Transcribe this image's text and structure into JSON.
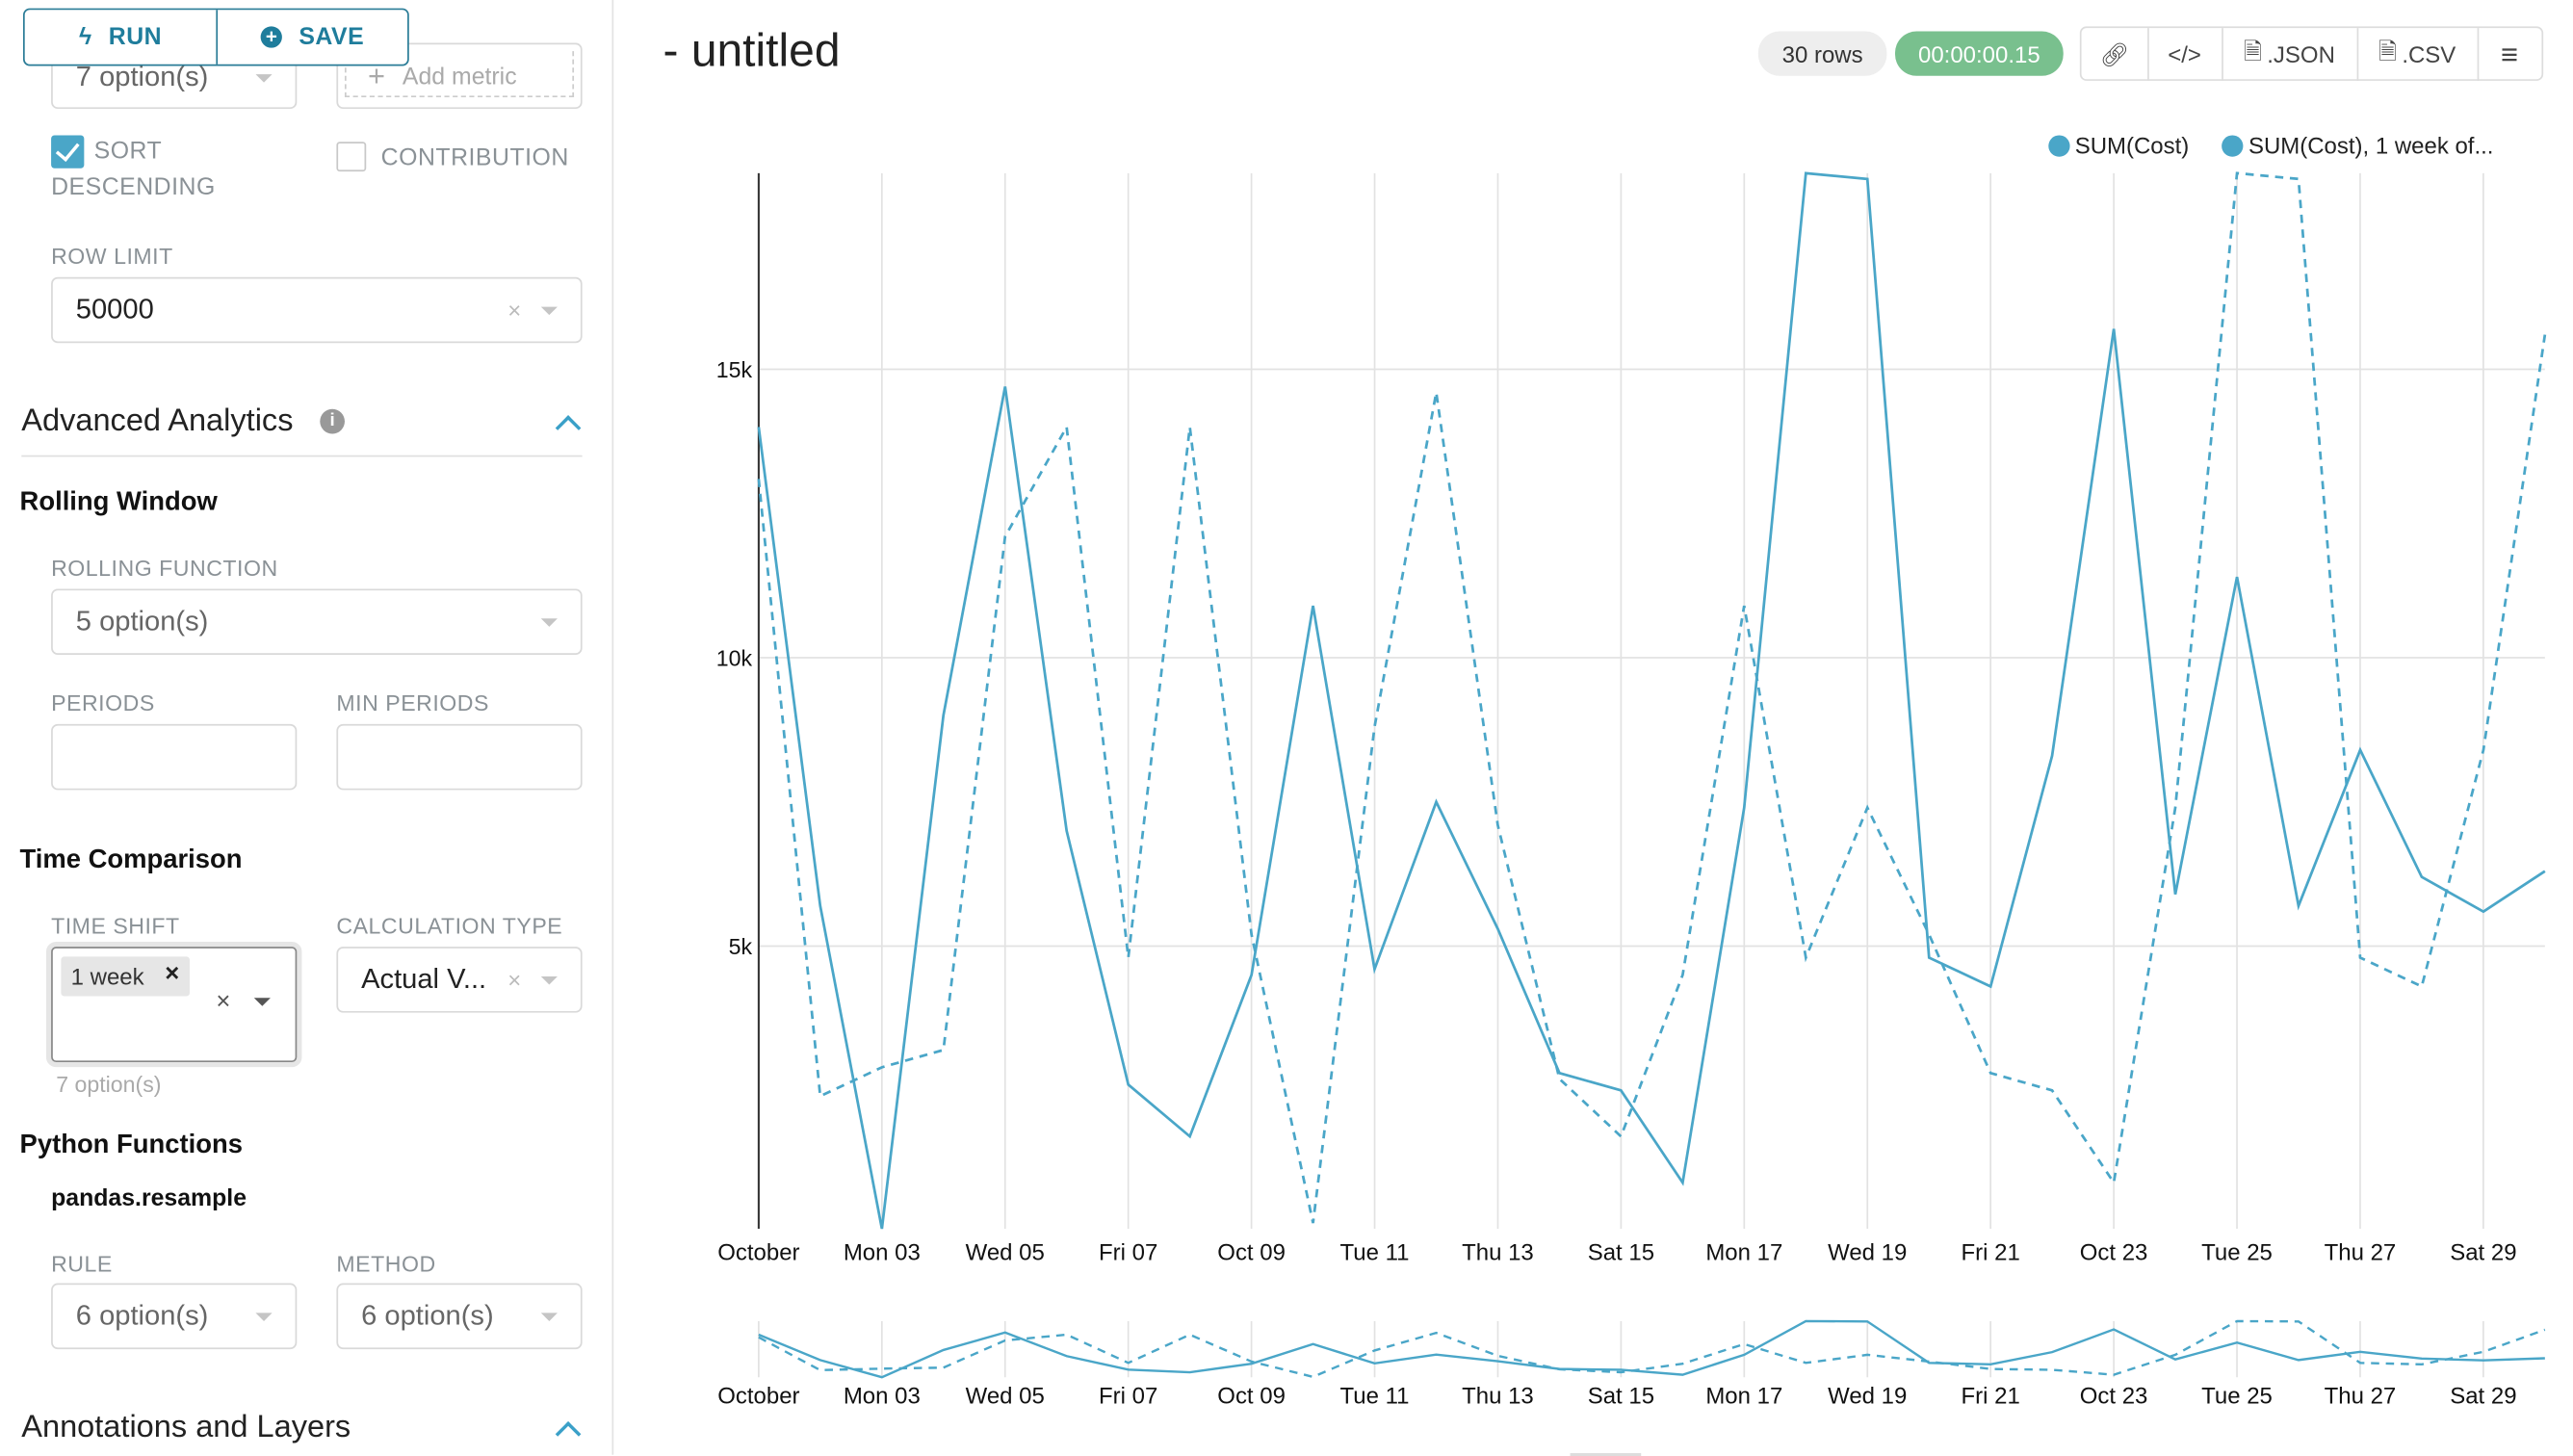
{
  "toolbar": {
    "run_label": "RUN",
    "save_label": "SAVE"
  },
  "sidebar": {
    "top_select_value": "7 option(s)",
    "add_metric_placeholder": "Add metric",
    "sort_descending": {
      "label_1": "SORT",
      "label_2": "DESCENDING",
      "checked": true
    },
    "contribution": {
      "label": "CONTRIBUTION",
      "checked": false
    },
    "row_limit": {
      "label": "ROW LIMIT",
      "value": "50000"
    },
    "advanced_analytics": {
      "title": "Advanced Analytics",
      "expanded": true
    },
    "rolling_window": {
      "title": "Rolling Window",
      "rolling_function_label": "ROLLING FUNCTION",
      "rolling_function_value": "5 option(s)",
      "periods_label": "PERIODS",
      "periods_value": "",
      "min_periods_label": "MIN PERIODS",
      "min_periods_value": ""
    },
    "time_comparison": {
      "title": "Time Comparison",
      "time_shift_label": "TIME SHIFT",
      "time_shift_tag": "1 week",
      "time_shift_hint": "7 option(s)",
      "calc_type_label": "CALCULATION TYPE",
      "calc_type_value": "Actual V..."
    },
    "python_functions": {
      "title": "Python Functions",
      "subtitle": "pandas.resample",
      "rule_label": "RULE",
      "rule_value": "6 option(s)",
      "method_label": "METHOD",
      "method_value": "6 option(s)"
    },
    "annotations": {
      "title": "Annotations and Layers",
      "expanded": true
    }
  },
  "header": {
    "title": "- untitled",
    "rows_badge": "30 rows",
    "timer_badge": "00:00:00.15",
    "json_label": ".JSON",
    "csv_label": ".CSV"
  },
  "colors": {
    "accent": "#4aa6c8",
    "timer_green": "#79c08e",
    "button_text": "#1f7d9c"
  },
  "chart_data": {
    "type": "line",
    "legend_position": "top-right",
    "grid": true,
    "x": [
      "Oct 01",
      "Oct 02",
      "Oct 03",
      "Oct 04",
      "Oct 05",
      "Oct 06",
      "Oct 07",
      "Oct 08",
      "Oct 09",
      "Oct 10",
      "Oct 11",
      "Oct 12",
      "Oct 13",
      "Oct 14",
      "Oct 15",
      "Oct 16",
      "Oct 17",
      "Oct 18",
      "Oct 19",
      "Oct 20",
      "Oct 21",
      "Oct 22",
      "Oct 23",
      "Oct 24",
      "Oct 25",
      "Oct 26",
      "Oct 27",
      "Oct 28",
      "Oct 29",
      "Oct 30"
    ],
    "x_tick_labels": [
      "October",
      "Mon 03",
      "Wed 05",
      "Fri 07",
      "Oct 09",
      "Tue 11",
      "Thu 13",
      "Sat 15",
      "Mon 17",
      "Wed 19",
      "Fri 21",
      "Oct 23",
      "Tue 25",
      "Thu 27",
      "Sat 29"
    ],
    "y_ticks": [
      5000,
      10000,
      15000
    ],
    "y_tick_labels": [
      "5k",
      "10k",
      "15k"
    ],
    "ylim": [
      100,
      18400
    ],
    "series": [
      {
        "name": "SUM(Cost)",
        "style": "solid",
        "values": [
          14000,
          5700,
          100,
          9000,
          14700,
          7000,
          2600,
          1700,
          4500,
          10900,
          4600,
          7500,
          5300,
          2800,
          2500,
          900,
          7400,
          18400,
          18300,
          4800,
          4300,
          8300,
          15700,
          5900,
          11400,
          5700,
          8400,
          6200,
          5600,
          6300
        ]
      },
      {
        "name": "SUM(Cost), 1 week of...",
        "style": "dashed",
        "values": [
          13100,
          2400,
          2900,
          3200,
          12100,
          14000,
          4800,
          14000,
          5200,
          200,
          8800,
          14600,
          7100,
          2700,
          1700,
          4500,
          10900,
          4800,
          7400,
          5200,
          2800,
          2500,
          900,
          7400,
          18400,
          18300,
          4800,
          4300,
          8400,
          15600
        ]
      }
    ]
  }
}
